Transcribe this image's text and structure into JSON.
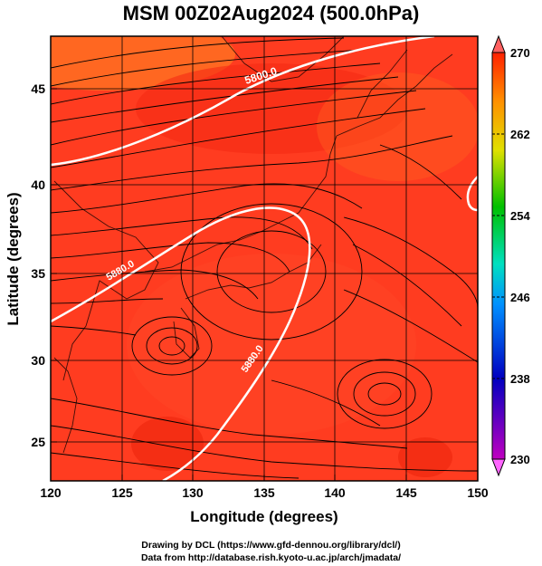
{
  "title": "MSM 00Z02Aug2024 (500.0hPa)",
  "xaxis": {
    "label": "Longitude (degrees)",
    "ticks": [
      "120",
      "125",
      "130",
      "135",
      "140",
      "145",
      "150"
    ]
  },
  "yaxis": {
    "label": "Latitude  (degrees)",
    "ticks": [
      "25",
      "30",
      "35",
      "40",
      "45"
    ]
  },
  "colorbar": {
    "ticks": [
      "270",
      "262",
      "254",
      "246",
      "238",
      "230"
    ]
  },
  "contours": [
    {
      "label": "5800.0"
    },
    {
      "label": "5880.0"
    },
    {
      "label": "5880.0"
    }
  ],
  "footer": {
    "line1": "Drawing by DCL (https://www.gfd-dennou.org/library/dcl/)",
    "line2": "Data from http://database.rish.kyoto-u.ac.jp/arch/jmadata/"
  },
  "chart_data": {
    "type": "heatmap",
    "title": "MSM 00Z02Aug2024 (500.0hPa)",
    "xlabel": "Longitude (degrees)",
    "ylabel": "Latitude  (degrees)",
    "xlim": [
      120,
      150
    ],
    "ylim": [
      22.4,
      47.6
    ],
    "colorbar_range": [
      230,
      270
    ],
    "colors": {
      "field_base": "#ff3a1e",
      "field_warm": "#ff6a20",
      "field_hot": "#f52d16",
      "contour": "#ffffff"
    }
  }
}
